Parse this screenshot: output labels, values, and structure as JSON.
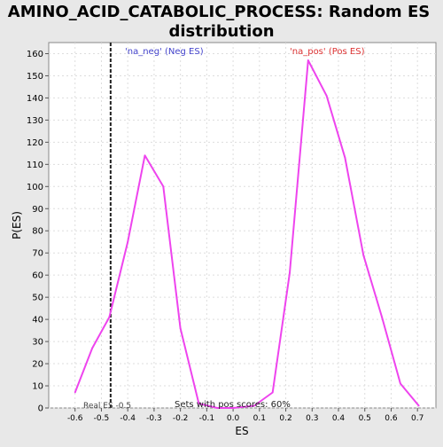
{
  "chart_data": {
    "type": "line",
    "title": "AMINO_ACID_CATABOLIC_PROCESS: Random ES distribution",
    "title_lines": [
      "AMINO_ACID_CATABOLIC_PROCESS: Random ES",
      "distribution"
    ],
    "xlabel": "ES",
    "ylabel": "P(ES)",
    "xlim": [
      -0.7,
      0.77
    ],
    "ylim": [
      0,
      165
    ],
    "x_ticks": [
      -0.6,
      -0.5,
      -0.4,
      -0.3,
      -0.2,
      -0.1,
      0.0,
      0.1,
      0.2,
      0.3,
      0.4,
      0.5,
      0.6,
      0.7
    ],
    "x_tick_labels": [
      "-0.6",
      "-0.5",
      "-0.4",
      "-0.3",
      "-0.2",
      "-0.1",
      "0.0",
      "0.1",
      "0.2",
      "0.3",
      "0.4",
      "0.5",
      "0.6",
      "0.7"
    ],
    "y_ticks": [
      0,
      10,
      20,
      30,
      40,
      50,
      60,
      70,
      80,
      90,
      100,
      110,
      120,
      130,
      140,
      150,
      160
    ],
    "y_tick_labels": [
      "0",
      "10",
      "20",
      "30",
      "40",
      "50",
      "60",
      "70",
      "80",
      "90",
      "100",
      "110",
      "120",
      "130",
      "140",
      "150",
      "160"
    ],
    "grid": true,
    "series": [
      {
        "color": "#ee44ee",
        "x": [
          -0.6,
          -0.535,
          -0.47,
          -0.4,
          -0.335,
          -0.265,
          -0.2,
          -0.13,
          -0.06,
          0.0,
          0.08,
          0.15,
          0.215,
          0.285,
          0.355,
          0.425,
          0.495,
          0.565,
          0.635,
          0.705
        ],
        "y": [
          7,
          27,
          41,
          75,
          114,
          100,
          36,
          2,
          0,
          0,
          1,
          7,
          61,
          157,
          141,
          113,
          69,
          41,
          11,
          1
        ]
      }
    ],
    "real_es": -0.465,
    "annotations": {
      "neg_label": "'na_neg' (Neg ES)",
      "neg_color": "#4444cc",
      "pos_label": "'na_pos' (Pos ES)",
      "pos_color": "#dd3333",
      "real_es_label": "Real ES -0.5",
      "pos_scores_label": "Sets with pos scores: 60%"
    }
  }
}
